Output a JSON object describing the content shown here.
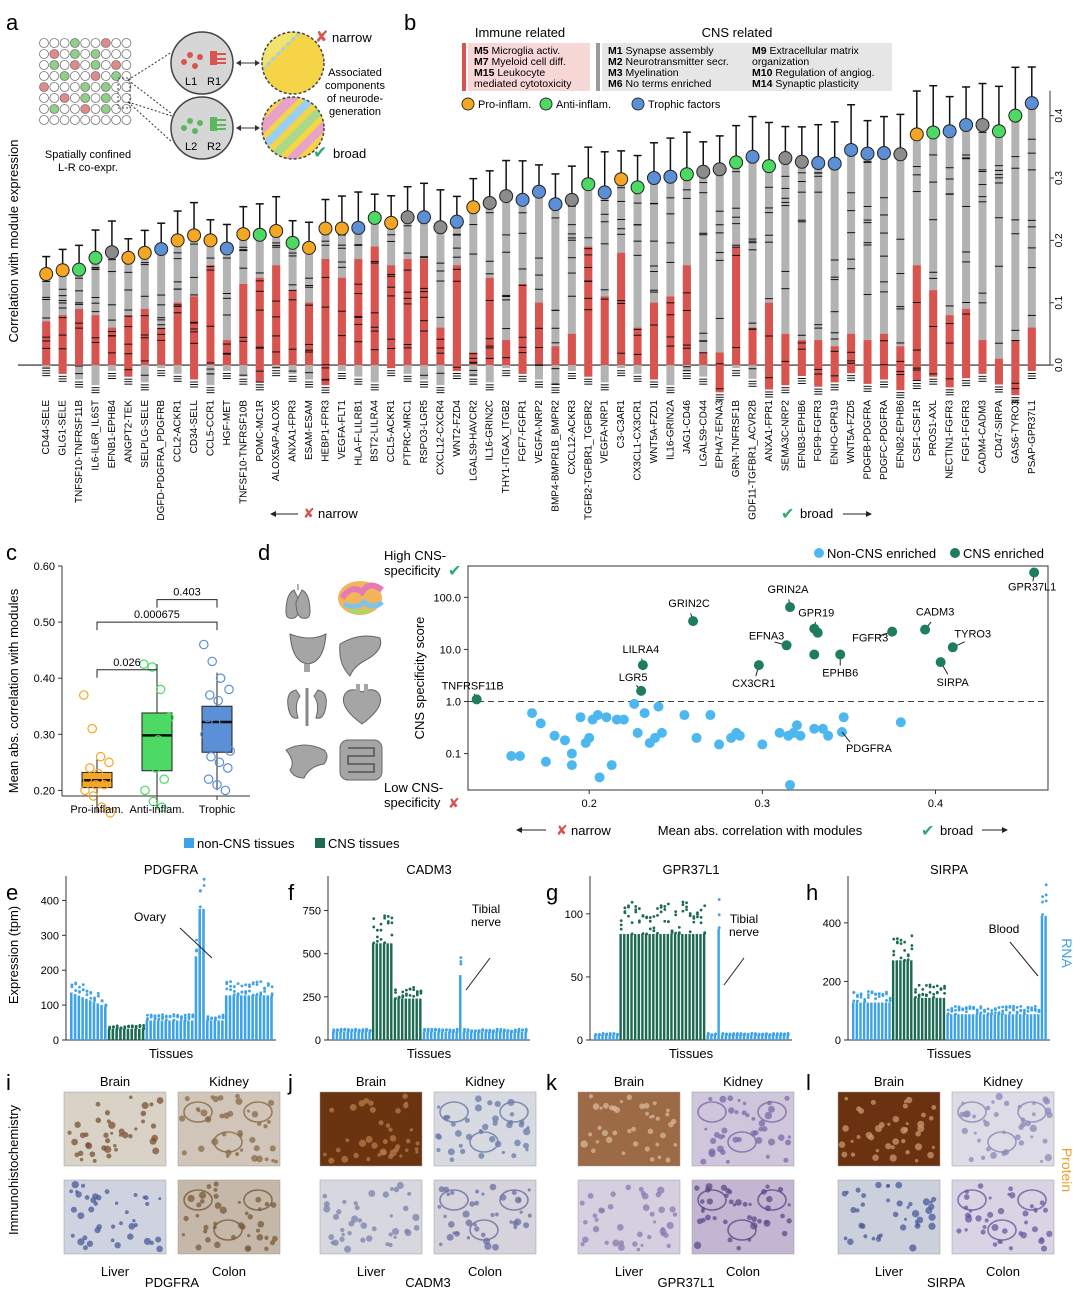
{
  "panels": {
    "a": "a",
    "b": "b",
    "c": "c",
    "d": "d",
    "e": "e",
    "f": "f",
    "g": "g",
    "h": "h",
    "i": "i",
    "j": "j",
    "k": "k",
    "l": "l"
  },
  "schematic": {
    "caption_line1": "Spatially confined",
    "caption_line2": "L-R co-expr.",
    "l1": "L1",
    "r1": "R1",
    "l2": "L2",
    "r2": "R2",
    "narrow": "narrow",
    "broad": "broad",
    "assoc_lines": [
      "Associated",
      "components",
      "of neurode-",
      "generation"
    ]
  },
  "legend_b": {
    "immune_header": "Immune related",
    "cns_header": "CNS related",
    "immune_items": [
      [
        "M5",
        "Microglia activ."
      ],
      [
        "M7",
        "Myeloid cell diff."
      ],
      [
        "M15",
        "Leukocyte"
      ],
      [
        "",
        "mediated cytotoxicity"
      ]
    ],
    "cns_col1": [
      [
        "M1",
        "Synapse assembly"
      ],
      [
        "M2",
        "Neurotransmitter secr."
      ],
      [
        "M3",
        "Myelination"
      ],
      [
        "M6",
        "No terms enriched"
      ]
    ],
    "cns_col2": [
      [
        "M9",
        "Extracellular matrix"
      ],
      [
        "",
        "organization"
      ],
      [
        "M10",
        "Regulation of angiog."
      ],
      [
        "M14",
        "Synaptic plasticity"
      ]
    ],
    "factor_legend": [
      {
        "label": "Pro-inflam.",
        "color": "#f5a623"
      },
      {
        "label": "Anti-inflam.",
        "color": "#4cd964"
      },
      {
        "label": "Trophic factors",
        "color": "#5b8fd6"
      }
    ]
  },
  "chart_data": [
    {
      "id": "panel-a",
      "type": "bar",
      "ylabel": "Correlation with module expression",
      "ylim": [
        -0.04,
        0.47
      ],
      "yticks": [
        0.0,
        0.1,
        0.2,
        0.3,
        0.4
      ],
      "ytick_labels": [
        "0.0",
        "0.1",
        "0.2",
        "0.3",
        "0.4"
      ],
      "x_left_label": "narrow",
      "x_right_label": "broad",
      "categories": [
        "CD44-SELE",
        "GLG1-SELE",
        "TNFSF10-TNFRSF11B",
        "IL6-IL6R_IL6ST",
        "EFNB1-EPHB4",
        "ANGPT2-TEK",
        "SELPLG-SELE",
        "DGFD-PDGFRA_PDGFRB",
        "CCL2-ACKR1",
        "CD34-SELL",
        "CCL5-CCR1",
        "HGF-MET",
        "TNFSF10-TNFRSF10B",
        "POMC-MC1R",
        "ALOX5AP-ALOX5",
        "ANXA1-FPR3",
        "ESAM-ESAM",
        "HEBP1-FPR3",
        "VEGFA-FLT1",
        "HLA-F-LILRB1",
        "BST2-LILRA4",
        "CCL5-ACKR1",
        "PTPRC-MRC1",
        "RSPO3-LGR5",
        "CXCL12-CXCR4",
        "WNT2-FZD4",
        "LGALS9-HAVCR2",
        "IL16-GRIN2C",
        "THY1-ITGAX_ITGB2",
        "FGF7-FGFR1",
        "VEGFA-NRP2",
        "BMP4-BMPR1B_BMPR2",
        "CXCL12-ACKR3",
        "TGFB2-TGFBR1_TGFBR2",
        "VEGFA-NRP1",
        "C3-C3AR1",
        "CX3CL1-CX3CR1",
        "WNT5A-FZD1",
        "IL16-GRIN2A",
        "JAG1-CD46",
        "LGALS9-CD44",
        "EPHA7-EFNA3",
        "GRN-TNFRSF1B",
        "GDF11-TGFBR1_ACVR2B",
        "ANXA1-FPR1",
        "SEMA3C-NRP2",
        "EFNB3-EPHB6",
        "FGF9-FGFR3",
        "ENHO-GPR19",
        "WNT5A-FZD5",
        "PDGFB-PDGFRA",
        "PDGFC-PDGFRA",
        "EFNB2-EPHB6",
        "CSF1-CSF1R",
        "PROS1-AXL",
        "NECTIN1-FGFR3",
        "FGF1-FGFR3",
        "CADM4-CADM3",
        "CD47-SIRPA",
        "GAS6-TYRO3",
        "PSAP-GPR37L1"
      ],
      "values": [
        0.146,
        0.152,
        0.153,
        0.172,
        0.181,
        0.172,
        0.18,
        0.186,
        0.2,
        0.208,
        0.2,
        0.187,
        0.21,
        0.209,
        0.215,
        0.196,
        0.188,
        0.219,
        0.219,
        0.22,
        0.236,
        0.228,
        0.237,
        0.237,
        0.221,
        0.23,
        0.253,
        0.26,
        0.271,
        0.265,
        0.278,
        0.258,
        0.265,
        0.29,
        0.277,
        0.298,
        0.285,
        0.3,
        0.302,
        0.306,
        0.31,
        0.314,
        0.325,
        0.334,
        0.319,
        0.332,
        0.326,
        0.324,
        0.323,
        0.345,
        0.339,
        0.34,
        0.338,
        0.37,
        0.373,
        0.375,
        0.385,
        0.385,
        0.375,
        0.4,
        0.42
      ],
      "factor_class": [
        "pro",
        "pro",
        "anti",
        "anti",
        "none",
        "pro",
        "pro",
        "trophic",
        "pro",
        "pro",
        "pro",
        "trophic",
        "pro",
        "anti",
        "pro",
        "anti",
        "pro",
        "pro",
        "pro",
        "trophic",
        "anti",
        "pro",
        "none",
        "trophic",
        "none",
        "trophic",
        "pro",
        "none",
        "none",
        "trophic",
        "trophic",
        "trophic",
        "none",
        "anti",
        "trophic",
        "pro",
        "anti",
        "trophic",
        "trophic",
        "anti",
        "none",
        "none",
        "anti",
        "trophic",
        "anti",
        "none",
        "none",
        "trophic",
        "trophic",
        "trophic",
        "trophic",
        "trophic",
        "none",
        "pro",
        "anti",
        "trophic",
        "trophic",
        "none",
        "anti",
        "anti",
        "trophic"
      ],
      "immune_value": [
        0.07,
        0.08,
        0.09,
        0.08,
        0.06,
        0.08,
        0.09,
        0.06,
        0.1,
        0.11,
        0.16,
        0.04,
        0.13,
        0.14,
        0.16,
        0.12,
        0.1,
        0.17,
        0.14,
        0.17,
        0.19,
        0.16,
        0.17,
        0.17,
        0.06,
        0.16,
        0.02,
        0.14,
        0.04,
        0.13,
        0.1,
        0.03,
        0.05,
        0.19,
        0.11,
        0.18,
        0.06,
        0.1,
        0.11,
        0.16,
        0.02,
        0.02,
        0.19,
        0.06,
        0.1,
        0.05,
        0.04,
        0.04,
        0.03,
        0.05,
        0.04,
        0.05,
        0.03,
        0.16,
        0.12,
        0.08,
        0.09,
        0.04,
        0.01,
        0.04,
        0.06
      ]
    },
    {
      "id": "panel-c",
      "type": "box",
      "ylabel": "Mean abs. correlation with modules",
      "ylim": [
        0.19,
        0.6
      ],
      "yticks": [
        0.2,
        0.3,
        0.4,
        0.5,
        0.6
      ],
      "ytick_labels": [
        "0.20",
        "0.30",
        "0.40",
        "0.50",
        "0.60"
      ],
      "categories": [
        "Pro-inflam.",
        "Anti-inflam.",
        "Trophic"
      ],
      "colors": [
        "#f5a623",
        "#4cd964",
        "#5b8fd6"
      ],
      "boxes": [
        {
          "q1": 0.205,
          "median": 0.218,
          "q3": 0.232,
          "whisker_low": 0.16,
          "whisker_high": 0.255
        },
        {
          "q1": 0.235,
          "median": 0.298,
          "q3": 0.338,
          "whisker_low": 0.17,
          "whisker_high": 0.425
        },
        {
          "q1": 0.268,
          "median": 0.322,
          "q3": 0.35,
          "whisker_low": 0.2,
          "whisker_high": 0.41
        }
      ],
      "points": [
        [
          0.37,
          0.31,
          0.26,
          0.25,
          0.24,
          0.23,
          0.22,
          0.22,
          0.21,
          0.21,
          0.2,
          0.19,
          0.17,
          0.16
        ],
        [
          0.425,
          0.42,
          0.38,
          0.33,
          0.31,
          0.29,
          0.28,
          0.26,
          0.24,
          0.22,
          0.2,
          0.18,
          0.17
        ],
        [
          0.46,
          0.43,
          0.4,
          0.38,
          0.37,
          0.36,
          0.34,
          0.33,
          0.32,
          0.31,
          0.3,
          0.29,
          0.28,
          0.27,
          0.26,
          0.25,
          0.24,
          0.22,
          0.21,
          0.2
        ]
      ],
      "brackets": [
        {
          "from": 0,
          "to": 1,
          "label": "0.026",
          "y": 0.415
        },
        {
          "from": 0,
          "to": 2,
          "label": "0.000675",
          "y": 0.5
        },
        {
          "from": 1,
          "to": 2,
          "label": "0.403",
          "y": 0.54
        }
      ]
    },
    {
      "id": "panel-d",
      "type": "scatter",
      "xlabel": "Mean abs. correlation with modules",
      "ylabel": "CNS specificity score",
      "x_left_label": "narrow",
      "x_right_label": "broad",
      "xlim": [
        0.13,
        0.465
      ],
      "xticks": [
        0.2,
        0.3,
        0.4
      ],
      "xtick_labels": [
        "0.2",
        "0.3",
        "0.4"
      ],
      "ylog": true,
      "ylim": [
        0.02,
        400
      ],
      "yticks": [
        0.1,
        1.0,
        10.0,
        100.0
      ],
      "ytick_labels": [
        "0.1",
        "1.0",
        "10.0",
        "100.0"
      ],
      "threshold": 1.0,
      "legend": [
        {
          "label": "Non-CNS enriched",
          "color": "#4db8f0"
        },
        {
          "label": "CNS enriched",
          "color": "#1e7d5e"
        }
      ],
      "cns_points": [
        {
          "x": 0.135,
          "y": 1.1,
          "label": "TNFRSF11B"
        },
        {
          "x": 0.23,
          "y": 1.6,
          "label": "LGR5"
        },
        {
          "x": 0.231,
          "y": 5,
          "label": "LILRA4"
        },
        {
          "x": 0.26,
          "y": 35,
          "label": "GRIN2C"
        },
        {
          "x": 0.298,
          "y": 5,
          "label": "CX3CR1"
        },
        {
          "x": 0.314,
          "y": 12,
          "label": "EFNA3"
        },
        {
          "x": 0.316,
          "y": 65,
          "label": "GRIN2A"
        },
        {
          "x": 0.33,
          "y": 25,
          "label": "GPR19"
        },
        {
          "x": 0.332,
          "y": 21,
          "label": ""
        },
        {
          "x": 0.345,
          "y": 8,
          "label": "EPHB6"
        },
        {
          "x": 0.33,
          "y": 8,
          "label": ""
        },
        {
          "x": 0.375,
          "y": 22,
          "label": "FGFR3"
        },
        {
          "x": 0.394,
          "y": 24,
          "label": "CADM3"
        },
        {
          "x": 0.41,
          "y": 11,
          "label": "TYRO3"
        },
        {
          "x": 0.403,
          "y": 5.7,
          "label": "SIRPA"
        },
        {
          "x": 0.457,
          "y": 300,
          "label": "GPR37L1"
        }
      ],
      "noncns_points": [
        {
          "x": 0.346,
          "y": 0.26,
          "label": "PDGFRA"
        },
        {
          "x": 0.155,
          "y": 0.09
        },
        {
          "x": 0.16,
          "y": 0.09
        },
        {
          "x": 0.167,
          "y": 0.6
        },
        {
          "x": 0.172,
          "y": 0.38
        },
        {
          "x": 0.175,
          "y": 0.07
        },
        {
          "x": 0.18,
          "y": 0.22
        },
        {
          "x": 0.186,
          "y": 0.18
        },
        {
          "x": 0.19,
          "y": 0.1
        },
        {
          "x": 0.19,
          "y": 0.06
        },
        {
          "x": 0.195,
          "y": 0.5
        },
        {
          "x": 0.198,
          "y": 0.16
        },
        {
          "x": 0.2,
          "y": 0.2
        },
        {
          "x": 0.202,
          "y": 0.45
        },
        {
          "x": 0.205,
          "y": 0.55
        },
        {
          "x": 0.206,
          "y": 0.035
        },
        {
          "x": 0.21,
          "y": 0.5
        },
        {
          "x": 0.213,
          "y": 0.06
        },
        {
          "x": 0.216,
          "y": 0.45
        },
        {
          "x": 0.22,
          "y": 0.45
        },
        {
          "x": 0.226,
          "y": 0.9
        },
        {
          "x": 0.228,
          "y": 0.25
        },
        {
          "x": 0.232,
          "y": 0.6
        },
        {
          "x": 0.235,
          "y": 0.16
        },
        {
          "x": 0.238,
          "y": 0.2
        },
        {
          "x": 0.24,
          "y": 0.8
        },
        {
          "x": 0.242,
          "y": 0.25
        },
        {
          "x": 0.255,
          "y": 0.55
        },
        {
          "x": 0.262,
          "y": 0.2
        },
        {
          "x": 0.27,
          "y": 0.55
        },
        {
          "x": 0.275,
          "y": 0.15
        },
        {
          "x": 0.282,
          "y": 0.2
        },
        {
          "x": 0.285,
          "y": 0.25
        },
        {
          "x": 0.287,
          "y": 0.22
        },
        {
          "x": 0.3,
          "y": 0.15
        },
        {
          "x": 0.31,
          "y": 0.25
        },
        {
          "x": 0.315,
          "y": 0.22
        },
        {
          "x": 0.318,
          "y": 0.25
        },
        {
          "x": 0.32,
          "y": 0.35
        },
        {
          "x": 0.322,
          "y": 0.22
        },
        {
          "x": 0.316,
          "y": 0.025
        },
        {
          "x": 0.33,
          "y": 0.3
        },
        {
          "x": 0.335,
          "y": 0.3
        },
        {
          "x": 0.338,
          "y": 0.22
        },
        {
          "x": 0.347,
          "y": 0.5
        },
        {
          "x": 0.38,
          "y": 0.4
        }
      ],
      "high_label": [
        "High CNS-",
        "specificity"
      ],
      "low_label": [
        "Low CNS-",
        "specificity"
      ]
    },
    {
      "id": "panels-efgh",
      "type": "strip",
      "legend": [
        {
          "label": "non-CNS tissues",
          "color": "#3ca2ea"
        },
        {
          "label": "CNS tissues",
          "color": "#1b6b52"
        }
      ],
      "ylabel": "Expression (tpm)",
      "xlabel": "Tissues",
      "side_label": "RNA",
      "plots": [
        {
          "gene": "PDGFRA",
          "yticks": [
            0,
            100,
            200,
            300,
            400
          ],
          "ymax": 470,
          "annotation": [
            "Ovary"
          ],
          "cns_range": [
            0.17,
            0.37
          ],
          "profile": "pdgfra"
        },
        {
          "gene": "CADM3",
          "yticks": [
            0,
            250,
            500,
            750
          ],
          "ymax": 950,
          "annotation": [
            "Tibial",
            "nerve"
          ],
          "cns_range": [
            0.2,
            0.46
          ],
          "profile": "cadm3"
        },
        {
          "gene": "GPR37L1",
          "yticks": [
            0,
            50,
            100
          ],
          "ymax": 130,
          "annotation": [
            "Tibial",
            "nerve"
          ],
          "cns_range": [
            0.12,
            0.56
          ],
          "profile": "gpr37l1"
        },
        {
          "gene": "SIRPA",
          "yticks": [
            0,
            200,
            400
          ],
          "ymax": 560,
          "annotation": [
            "Blood"
          ],
          "cns_range": [
            0.2,
            0.48
          ],
          "profile": "sirpa"
        }
      ]
    }
  ],
  "ihc": {
    "side_label": "Immunohistochemistry",
    "protein_label": "Protein",
    "tissues": [
      "Brain",
      "Kidney",
      "Liver",
      "Colon"
    ],
    "genes": [
      "PDGFRA",
      "CADM3",
      "GPR37L1",
      "SIRPA"
    ]
  }
}
